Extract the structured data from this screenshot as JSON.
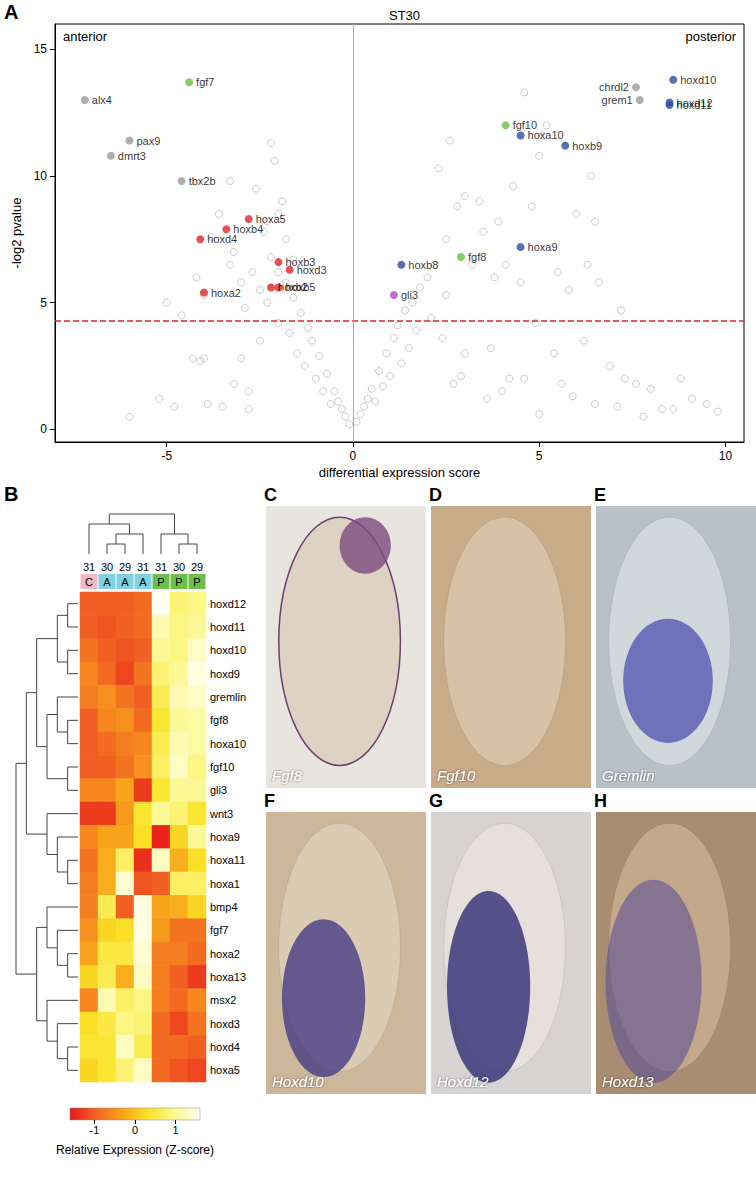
{
  "chart_data": [
    {
      "type": "scatter",
      "panel_label": "A",
      "title": "ST30",
      "x_label": "differential expression score",
      "y_label": "-log2 pvalue",
      "annotations": [
        "anterior",
        "posterior"
      ],
      "xlim": [
        -8,
        10.5
      ],
      "xticks": [
        -5,
        0,
        5,
        10
      ],
      "ylim": [
        -0.5,
        16
      ],
      "yticks": [
        0,
        5,
        10,
        15
      ],
      "grid": false,
      "marker": "open_circle",
      "color": "#bdbdbd",
      "threshold": 4.3,
      "threshold_color": "#e0262b",
      "reference_x": 0,
      "x": [
        -0.1,
        0.1,
        -0.3,
        0.3,
        -0.5,
        0.5,
        -0.7,
        0.7,
        -0.9,
        0.9,
        -1.1,
        1.1,
        -0.2,
        0.2,
        -0.4,
        0.4,
        -0.6,
        0.6,
        -0.8,
        0.8,
        -1.0,
        1.0,
        -1.3,
        1.3,
        -1.5,
        1.5,
        -1.2,
        1.2,
        -1.4,
        1.4,
        -1.6,
        1.6,
        -1.8,
        1.8,
        -2.0,
        2.0,
        -2.2,
        2.2,
        -1.7,
        1.7,
        -2.0,
        2.1,
        -2.5,
        2.4,
        -3.0,
        3.0,
        -2.8,
        2.7,
        -3.5,
        3.6,
        -4.0,
        4.2,
        -2.3,
        2.5,
        -2.5,
        -3.0,
        -2.7,
        -3.2,
        -2.4,
        -2.0,
        -2.6,
        -2.2,
        -2.1,
        -3.3,
        -1.8,
        -1.6,
        -3.8,
        -4.2,
        -4.0,
        -3.3,
        -2.9,
        -5.0,
        -4.6,
        -1.9,
        -2.3,
        -3.6,
        -4.3,
        -3.9,
        2.5,
        2.8,
        3.0,
        2.3,
        2.6,
        3.4,
        3.9,
        3.5,
        3.2,
        3.8,
        4.1,
        4.5,
        4.3,
        5.0,
        5.2,
        4.6,
        5.1,
        4.8,
        5.5,
        5.8,
        6.0,
        6.4,
        6.5,
        6.3,
        6.6,
        7.2,
        6.2,
        5.4,
        4.9,
        5.6,
        5.9,
        6.5,
        7.1,
        7.6,
        8.0,
        8.3,
        8.6,
        9.1,
        9.5,
        9.8,
        7.3,
        6.9,
        4.6,
        4.0,
        3.7,
        2.9,
        5.0,
        7.8,
        8.8,
        -4.1,
        -5.2,
        -3.2,
        -2.8,
        -6.0,
        -4.8
      ],
      "y": [
        0.2,
        0.3,
        0.8,
        0.9,
        1.5,
        1.6,
        2.2,
        2.3,
        2.9,
        3.0,
        3.5,
        3.6,
        0.5,
        0.6,
        1.1,
        1.2,
        1.0,
        1.1,
        1.5,
        1.7,
        2.0,
        2.1,
        2.5,
        2.6,
        3.0,
        3.2,
        4.0,
        4.1,
        4.6,
        4.7,
        5.2,
        5.0,
        5.8,
        5.6,
        6.2,
        6.0,
        6.8,
        6.5,
        3.8,
        3.9,
        4.2,
        4.4,
        3.5,
        3.6,
        2.8,
        3.0,
        1.5,
        1.8,
        0.9,
        1.2,
        2.8,
        2.0,
        5.0,
        5.3,
        5.5,
        5.8,
        6.2,
        7.0,
        7.8,
        8.5,
        9.5,
        11.3,
        10.6,
        9.8,
        7.5,
        6.7,
        7.6,
        6.0,
        5.3,
        6.5,
        4.8,
        5.0,
        4.5,
        9.0,
        8.2,
        8.5,
        2.8,
        1.0,
        7.5,
        8.8,
        9.2,
        10.3,
        11.4,
        9.0,
        8.2,
        7.8,
        6.5,
        6.0,
        6.5,
        5.8,
        9.6,
        10.8,
        12.0,
        13.3,
        11.6,
        8.8,
        6.2,
        5.5,
        8.5,
        10.0,
        8.2,
        6.5,
        5.8,
        4.7,
        3.5,
        3.0,
        4.2,
        1.8,
        1.3,
        1.0,
        0.9,
        1.8,
        1.6,
        0.8,
        0.8,
        1.2,
        1.0,
        0.7,
        2.0,
        2.5,
        2.0,
        1.5,
        3.2,
        2.1,
        0.6,
        0.5,
        2.0,
        2.7,
        1.2,
        1.8,
        0.8,
        0.5,
        0.9
      ],
      "highlighted": [
        {
          "label": "alx4",
          "x": -7.2,
          "y": 13.0,
          "color": "#9b9b9b"
        },
        {
          "label": "fgf7",
          "x": -4.4,
          "y": 13.7,
          "color": "#6cbf4a"
        },
        {
          "label": "pax9",
          "x": -6.0,
          "y": 11.4,
          "color": "#9b9b9b"
        },
        {
          "label": "dmrt3",
          "x": -6.5,
          "y": 10.8,
          "color": "#9b9b9b"
        },
        {
          "label": "tbx2b",
          "x": -4.6,
          "y": 9.8,
          "color": "#9b9b9b"
        },
        {
          "label": "hoxa5",
          "x": -2.8,
          "y": 8.3,
          "color": "#e0262b"
        },
        {
          "label": "hoxb4",
          "x": -3.4,
          "y": 7.9,
          "color": "#e0262b"
        },
        {
          "label": "hoxd4",
          "x": -4.1,
          "y": 7.5,
          "color": "#e0262b"
        },
        {
          "label": "hoxb3",
          "x": -2.0,
          "y": 6.6,
          "color": "#e0262b"
        },
        {
          "label": "hoxd3",
          "x": -1.7,
          "y": 6.3,
          "color": "#e0262b"
        },
        {
          "label": "hoxa2",
          "x": -4.0,
          "y": 5.4,
          "color": "#e0262b"
        },
        {
          "label": "hoxb2",
          "x": -2.2,
          "y": 5.6,
          "color": "#e0262b"
        },
        {
          "label": "hoxb5",
          "x": -2.0,
          "y": 5.6,
          "color": "#e0262b"
        },
        {
          "label": "hoxb8",
          "x": 1.3,
          "y": 6.5,
          "color": "#2d4ea3"
        },
        {
          "label": "gli3",
          "x": 1.1,
          "y": 5.3,
          "color": "#b04ec2"
        },
        {
          "label": "fgf8",
          "x": 2.9,
          "y": 6.8,
          "color": "#6cbf4a"
        },
        {
          "label": "hoxa9",
          "x": 4.5,
          "y": 7.2,
          "color": "#2d4ea3"
        },
        {
          "label": "fgf10",
          "x": 4.1,
          "y": 12.0,
          "color": "#6cbf4a"
        },
        {
          "label": "hoxa10",
          "x": 4.5,
          "y": 11.6,
          "color": "#2d4ea3"
        },
        {
          "label": "hoxb9",
          "x": 5.7,
          "y": 11.2,
          "color": "#2d4ea3"
        },
        {
          "label": "chrdl2",
          "x": 7.6,
          "y": 13.5,
          "color": "#9b9b9b"
        },
        {
          "label": "grem1",
          "x": 7.7,
          "y": 13.0,
          "color": "#9b9b9b"
        },
        {
          "label": "hoxd10",
          "x": 8.6,
          "y": 13.8,
          "color": "#2d4ea3"
        },
        {
          "label": "hoxd12",
          "x": 8.5,
          "y": 12.9,
          "color": "#2d4ea3"
        },
        {
          "label": "hoxd11",
          "x": 8.5,
          "y": 12.8,
          "color": "#2d4ea3"
        }
      ]
    },
    {
      "type": "heatmap",
      "panel_label": "B",
      "columns": [
        31,
        30,
        29,
        31,
        31,
        30,
        29
      ],
      "column_groups": [
        "C",
        "A",
        "A",
        "A",
        "P",
        "P",
        "P"
      ],
      "group_colors": {
        "C": "#f4b8c4",
        "A": "#7fd1e3",
        "P": "#6cc04a"
      },
      "rows": [
        "hoxd12",
        "hoxd11",
        "hoxd10",
        "hoxd9",
        "gremlin",
        "fgf8",
        "hoxa10",
        "fgf10",
        "gli3",
        "wnt3",
        "hoxa9",
        "hoxa11",
        "hoxa1",
        "bmp4",
        "fgf7",
        "hoxa2",
        "hoxa13",
        "msx2",
        "hoxd3",
        "hoxd4",
        "hoxa5"
      ],
      "values": [
        [
          -1.0,
          -1.0,
          -1.0,
          -0.9,
          1.6,
          0.8,
          0.9
        ],
        [
          -1.0,
          -1.1,
          -1.0,
          -0.9,
          1.2,
          0.9,
          1.0
        ],
        [
          -0.8,
          -1.0,
          -1.1,
          -1.0,
          1.0,
          0.9,
          1.3
        ],
        [
          -0.6,
          -0.9,
          -1.2,
          -0.8,
          0.8,
          1.0,
          1.5
        ],
        [
          -0.7,
          -0.5,
          -0.8,
          -1.0,
          0.6,
          1.2,
          1.3
        ],
        [
          -1.0,
          -0.6,
          -0.5,
          -0.9,
          0.4,
          1.0,
          1.1
        ],
        [
          -1.0,
          -0.9,
          -0.7,
          -0.6,
          0.6,
          1.2,
          1.1
        ],
        [
          -1.0,
          -1.0,
          -0.8,
          -0.5,
          0.7,
          1.3,
          0.9
        ],
        [
          -0.6,
          -0.6,
          -0.3,
          -1.3,
          0.4,
          1.0,
          1.0
        ],
        [
          -1.3,
          -1.3,
          -0.4,
          0.4,
          1.0,
          0.8,
          0.4
        ],
        [
          -0.6,
          -0.3,
          -0.3,
          0.3,
          -1.5,
          0.2,
          1.0
        ],
        [
          -0.8,
          -0.2,
          0.7,
          -1.4,
          1.3,
          -0.2,
          0.3
        ],
        [
          -0.7,
          -0.2,
          1.4,
          -1.1,
          -1.0,
          0.7,
          0.7
        ],
        [
          -0.7,
          0.6,
          -1.0,
          1.5,
          -0.3,
          -0.2,
          0.2
        ],
        [
          -0.5,
          0.2,
          0.3,
          1.5,
          -0.4,
          -0.8,
          -0.8
        ],
        [
          -0.3,
          0.5,
          0.5,
          1.4,
          -0.7,
          -0.7,
          -0.9
        ],
        [
          0.2,
          0.6,
          -0.2,
          1.3,
          -0.7,
          -1.0,
          -1.3
        ],
        [
          -0.6,
          1.2,
          0.7,
          0.9,
          -0.7,
          -0.9,
          -0.6
        ],
        [
          0.3,
          0.5,
          0.9,
          0.8,
          -0.9,
          -1.2,
          -0.8
        ],
        [
          0.4,
          0.4,
          1.3,
          0.6,
          -0.9,
          -0.9,
          -1.0
        ],
        [
          0.2,
          0.4,
          0.8,
          1.3,
          -0.9,
          -1.1,
          -1.2
        ]
      ],
      "colorbar_label": "Relative Expression (Z-score)",
      "colorbar_range": [
        -1.6,
        1.6
      ],
      "colorbar_ticks": [
        -1,
        0,
        1
      ],
      "colormap": [
        "#e8161b",
        "#f26522",
        "#f7a21b",
        "#fbe226",
        "#fcf88f",
        "#fffff0"
      ],
      "column_tree": [
        [
          0,
          [
            [
              1,
              2
            ],
            3
          ]
        ],
        [
          4,
          [
            5,
            6
          ]
        ]
      ],
      "row_tree": [
        [
          [
            [
              [
                0,
                1
              ],
              [
                2,
                3
              ]
            ],
            [
              [
                4,
                [
                  5,
                  6
                ]
              ],
              [
                7,
                8
              ]
            ]
          ],
          [
            9,
            [
              10,
              [
                11,
                12
              ]
            ]
          ]
        ],
        [
          [
            13,
            [
              14,
              [
                15,
                16
              ]
            ]
          ],
          [
            17,
            [
              18,
              [
                19,
                20
              ]
            ]
          ]
        ]
      ]
    }
  ],
  "panels": [
    {
      "label": "C",
      "text": "Fgf8"
    },
    {
      "label": "D",
      "text": "Fgf10"
    },
    {
      "label": "E",
      "text": "Gremlin"
    },
    {
      "label": "F",
      "text": "Hoxd10"
    },
    {
      "label": "G",
      "text": "Hoxd12"
    },
    {
      "label": "H",
      "text": "Hoxd13"
    }
  ]
}
